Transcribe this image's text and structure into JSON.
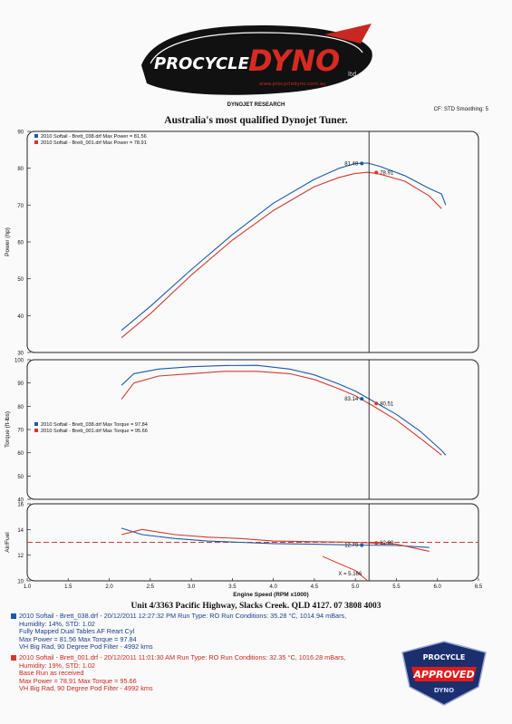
{
  "logo": {
    "left": "PROCYCLE",
    "right": "DYNO",
    "suffix": "ltd.",
    "tagline": "www.procycledyno.com.au"
  },
  "header": {
    "source": "DYNOJET RESEARCH",
    "subtitle": "Australia's most qualified Dynojet Tuner.",
    "settings": "CF: STD  Smoothing: 5"
  },
  "colors": {
    "run1": "#1c5aa8",
    "run2": "#d23a2e",
    "cursor": "#222222"
  },
  "chart_data": [
    {
      "type": "line",
      "ylabel": "Power (hp)",
      "ylim": [
        30,
        90
      ],
      "yticks": [
        30,
        40,
        50,
        60,
        70,
        80,
        90
      ],
      "legend": [
        "2010 Softail - Brett_038.drf Max Power = 81.56",
        "2010 Softail - Brett_001.drf Max Power = 78.91"
      ],
      "series": [
        {
          "name": "2010 Softail - Brett_038.drf",
          "x": [
            2.15,
            2.5,
            3.0,
            3.5,
            4.0,
            4.5,
            4.8,
            5.0,
            5.15,
            5.3,
            5.6,
            5.9,
            6.05,
            6.1
          ],
          "values": [
            36,
            42.5,
            52.5,
            62,
            70.5,
            77,
            80,
            81.3,
            81.4,
            80.5,
            78,
            74.5,
            73,
            70
          ]
        },
        {
          "name": "2010 Softail - Brett_001.drf",
          "x": [
            2.15,
            2.5,
            3.0,
            3.5,
            4.0,
            4.5,
            4.8,
            5.0,
            5.15,
            5.3,
            5.6,
            5.9,
            6.05
          ],
          "values": [
            34,
            40.5,
            51,
            60.5,
            68.5,
            75,
            77.5,
            78.6,
            78.9,
            78.4,
            76.5,
            72.5,
            69
          ]
        }
      ],
      "cursor_labels": [
        "81.48",
        "78.91"
      ]
    },
    {
      "type": "line",
      "ylabel": "Torque (ft-lbs)",
      "ylim": [
        40,
        100
      ],
      "yticks": [
        40,
        50,
        60,
        70,
        80,
        90,
        100
      ],
      "legend": [
        "2010 Softail - Brett_038.drf Max Torque = 97.84",
        "2010 Softail - Brett_001.drf Max Torque = 95.66"
      ],
      "series": [
        {
          "name": "2010 Softail - Brett_038.drf",
          "x": [
            2.15,
            2.3,
            2.6,
            3.0,
            3.4,
            3.8,
            4.2,
            4.5,
            4.8,
            5.0,
            5.2,
            5.5,
            5.8,
            6.05,
            6.1
          ],
          "values": [
            89,
            94,
            96,
            97,
            97.5,
            97.6,
            96,
            93.5,
            89.5,
            86.5,
            82.5,
            76.5,
            69,
            61,
            59
          ]
        },
        {
          "name": "2010 Softail - Brett_001.drf",
          "x": [
            2.15,
            2.3,
            2.6,
            3.0,
            3.4,
            3.8,
            4.2,
            4.5,
            4.8,
            5.0,
            5.2,
            5.5,
            5.8,
            6.05
          ],
          "values": [
            83,
            90,
            93,
            94,
            95,
            95,
            94,
            91.5,
            87.5,
            84.5,
            80.5,
            74,
            66,
            59
          ]
        }
      ],
      "cursor_labels": [
        "83.14",
        "80.51"
      ]
    },
    {
      "type": "line",
      "ylabel": "Air/Fuel",
      "ylim": [
        10,
        16
      ],
      "yticks": [
        10,
        12,
        14,
        16
      ],
      "reference_line": 13.0,
      "series": [
        {
          "name": "2010 Softail - Brett_038.drf",
          "x": [
            2.15,
            2.4,
            2.8,
            3.2,
            3.6,
            4.0,
            4.5,
            5.0,
            5.5,
            5.9
          ],
          "values": [
            14.1,
            13.6,
            13.3,
            13.1,
            13.0,
            12.9,
            12.85,
            12.79,
            12.75,
            12.6
          ]
        },
        {
          "name": "2010 Softail - Brett_001.drf",
          "x": [
            2.15,
            2.4,
            2.8,
            3.2,
            3.6,
            4.0,
            4.5,
            5.0,
            5.5,
            5.9
          ],
          "values": [
            13.6,
            14.0,
            13.6,
            13.4,
            13.3,
            13.1,
            13.05,
            13.0,
            12.85,
            12.3
          ]
        }
      ],
      "extra_series": {
        "x": [
          4.6,
          5.0,
          5.15
        ],
        "values": [
          11.9,
          10.8,
          10.0
        ]
      },
      "cursor_labels": [
        "12.79",
        "12.98"
      ],
      "cursor_readout": "X = 5.166"
    }
  ],
  "x_axis": {
    "label": "Engine Speed (RPM x1000)",
    "xlim": [
      1.0,
      6.5
    ],
    "ticks": [
      "1.0",
      "1.5",
      "2.0",
      "2.5",
      "3.0",
      "3.5",
      "4.0",
      "4.5",
      "5.0",
      "5.5",
      "6.0",
      "6.5"
    ],
    "cursor_x": 5.166
  },
  "footer": {
    "address": "Unit 4/3363 Pacific Highway, Slacks Creek. QLD 4127. 07 3808 4003",
    "run1": [
      "2010 Softail - Brett_038.drf - 20/12/2011 12:27:32 PM  Run Type: RO  Run Conditions: 35.28 °C, 1014.94 mBars,",
      "Humidity:  14%, STD: 1.02",
      "Fully Mapped Dual Tables AF Reart Cyl",
      "Max Power = 81.56  Max Torque = 97.84",
      "VH Big Rad, 90 Degree Pod Filter - 4992 kms"
    ],
    "run2": [
      "2010 Softail - Brett_001.drf - 20/12/2011 11:01:30 AM  Run Type: RO  Run Conditions: 32.35 °C, 1016.28 mBars,",
      "Humidity:  19%, STD: 1.02",
      "Base Run as received",
      "Max Power = 78.91  Max Torque = 95.66",
      "VH Big Rad, 90 Degree Pod Filter - 4992 kms"
    ]
  },
  "badge": {
    "top": "PROCYCLE",
    "middle": "APPROVED",
    "bottom": "DYNO"
  }
}
